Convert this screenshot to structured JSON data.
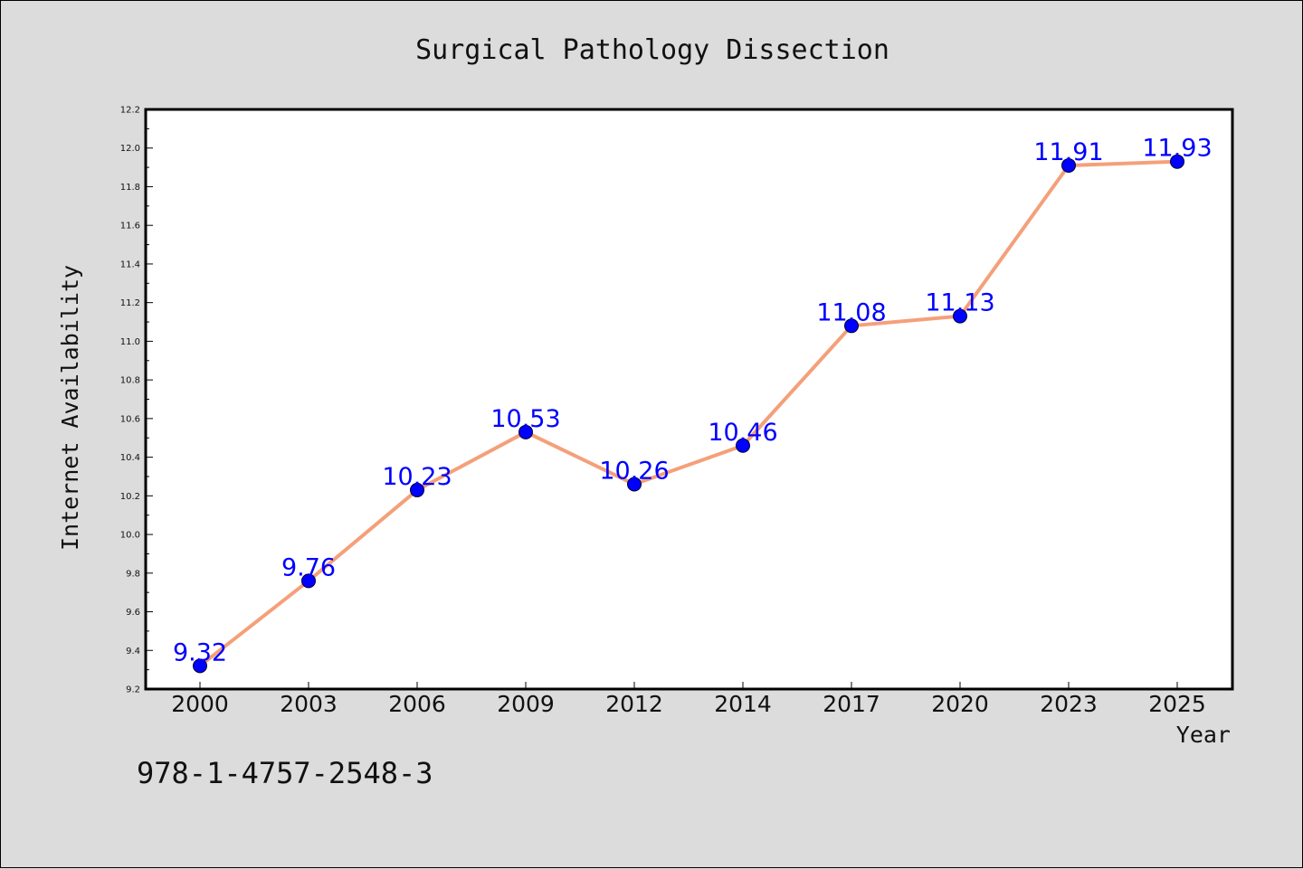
{
  "chart_data": {
    "type": "line",
    "title": "Surgical Pathology Dissection",
    "xlabel": "Year",
    "ylabel": "Internet Availability",
    "categories": [
      "2000",
      "2003",
      "2006",
      "2009",
      "2012",
      "2014",
      "2017",
      "2020",
      "2023",
      "2025"
    ],
    "values": [
      9.32,
      9.76,
      10.23,
      10.53,
      10.26,
      10.46,
      11.08,
      11.13,
      11.91,
      11.93
    ],
    "data_labels": [
      "9.32",
      "9.76",
      "10.23",
      "10.53",
      "10.26",
      "10.46",
      "11.08",
      "11.13",
      "11.91",
      "11.93"
    ],
    "ylim": [
      9.2,
      12.2
    ],
    "yticks": [
      "9.2",
      "9.4",
      "9.6",
      "9.8",
      "10.0",
      "10.2",
      "10.4",
      "10.6",
      "10.8",
      "11.0",
      "11.2",
      "11.4",
      "11.6",
      "11.8",
      "12.0",
      "12.2"
    ],
    "grid": false,
    "line_color": "#f4a07a",
    "marker_color": "#0000ff",
    "label_color": "#0000ff"
  },
  "footer_text": "978-1-4757-2548-3"
}
